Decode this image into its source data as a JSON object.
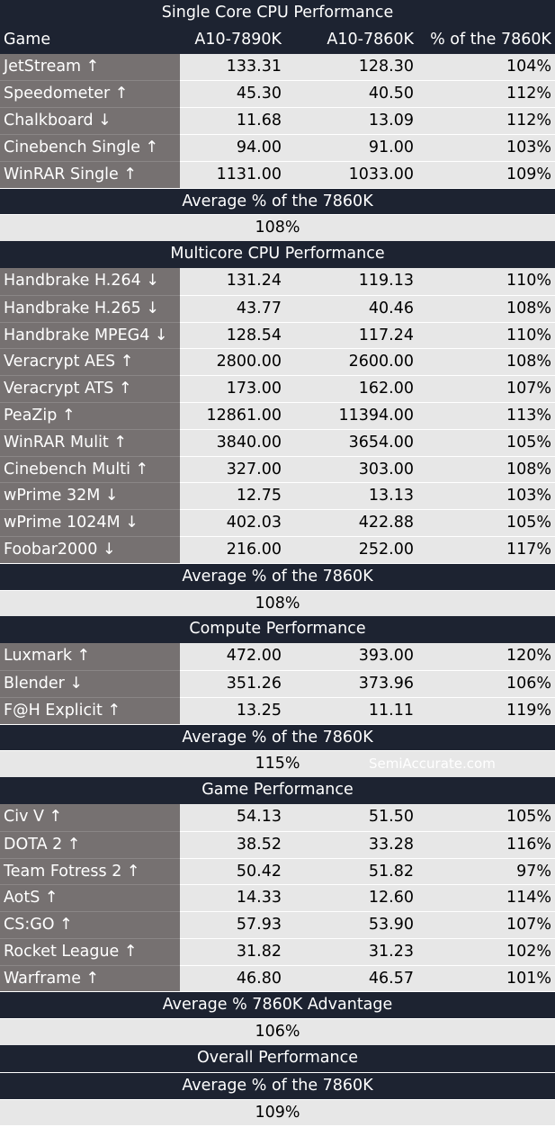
{
  "header": {
    "title": "Single Core CPU Performance",
    "columns": [
      "Game",
      "A10-7890K",
      "A10-7860K",
      "% of the 7860K"
    ]
  },
  "sections": [
    {
      "title": "Single Core CPU Performance",
      "rows": [
        {
          "name": "JetStream ↑",
          "a": "133.31",
          "b": "128.30",
          "p": "104%"
        },
        {
          "name": "Speedometer ↑",
          "a": "45.30",
          "b": "40.50",
          "p": "112%"
        },
        {
          "name": "Chalkboard ↓",
          "a": "11.68",
          "b": "13.09",
          "p": "112%"
        },
        {
          "name": "Cinebench Single ↑",
          "a": "94.00",
          "b": "91.00",
          "p": "103%"
        },
        {
          "name": "WinRAR Single ↑",
          "a": "1131.00",
          "b": "1033.00",
          "p": "109%"
        }
      ],
      "avg_label": "Average % of the 7860K",
      "avg_value": "108%"
    },
    {
      "title": "Multicore CPU Performance",
      "rows": [
        {
          "name": "Handbrake H.264 ↓",
          "a": "131.24",
          "b": "119.13",
          "p": "110%"
        },
        {
          "name": "Handbrake H.265 ↓",
          "a": "43.77",
          "b": "40.46",
          "p": "108%"
        },
        {
          "name": "Handbrake MPEG4 ↓",
          "a": "128.54",
          "b": "117.24",
          "p": "110%"
        },
        {
          "name": "Veracrypt AES ↑",
          "a": "2800.00",
          "b": "2600.00",
          "p": "108%"
        },
        {
          "name": "Veracrypt ATS ↑",
          "a": "173.00",
          "b": "162.00",
          "p": "107%"
        },
        {
          "name": "PeaZip ↑",
          "a": "12861.00",
          "b": "11394.00",
          "p": "113%"
        },
        {
          "name": "WinRAR Mulit ↑",
          "a": "3840.00",
          "b": "3654.00",
          "p": "105%"
        },
        {
          "name": "Cinebench Multi ↑",
          "a": "327.00",
          "b": "303.00",
          "p": "108%"
        },
        {
          "name": "wPrime 32M ↓",
          "a": "12.75",
          "b": "13.13",
          "p": "103%"
        },
        {
          "name": "wPrime 1024M ↓",
          "a": "402.03",
          "b": "422.88",
          "p": "105%"
        },
        {
          "name": "Foobar2000 ↓",
          "a": "216.00",
          "b": "252.00",
          "p": "117%"
        }
      ],
      "avg_label": "Average % of the 7860K",
      "avg_value": "108%"
    },
    {
      "title": "Compute Performance",
      "rows": [
        {
          "name": "Luxmark ↑",
          "a": "472.00",
          "b": "393.00",
          "p": "120%"
        },
        {
          "name": "Blender ↓",
          "a": "351.26",
          "b": "373.96",
          "p": "106%"
        },
        {
          "name": "F@H Explicit ↑",
          "a": "13.25",
          "b": "11.11",
          "p": "119%"
        }
      ],
      "avg_label": "Average % of the 7860K",
      "avg_value": "115%",
      "watermark": "SemiAccurate.com"
    },
    {
      "title": "Game Performance",
      "rows": [
        {
          "name": "Civ V ↑",
          "a": "54.13",
          "b": "51.50",
          "p": "105%"
        },
        {
          "name": "DOTA 2 ↑",
          "a": "38.52",
          "b": "33.28",
          "p": "116%"
        },
        {
          "name": "Team Fotress 2 ↑",
          "a": "50.42",
          "b": "51.82",
          "p": "97%"
        },
        {
          "name": "AotS ↑",
          "a": "14.33",
          "b": "12.60",
          "p": "114%"
        },
        {
          "name": "CS:GO ↑",
          "a": "57.93",
          "b": "53.90",
          "p": "107%"
        },
        {
          "name": "Rocket League ↑",
          "a": "31.82",
          "b": "31.23",
          "p": "102%"
        },
        {
          "name": "Warframe ↑",
          "a": "46.80",
          "b": "46.57",
          "p": "101%"
        }
      ],
      "avg_label": "Average % 7860K Advantage",
      "avg_value": "106%"
    }
  ],
  "overall": {
    "title": "Overall Performance",
    "avg_label": "Average % of the 7860K",
    "avg_value": "109%"
  }
}
